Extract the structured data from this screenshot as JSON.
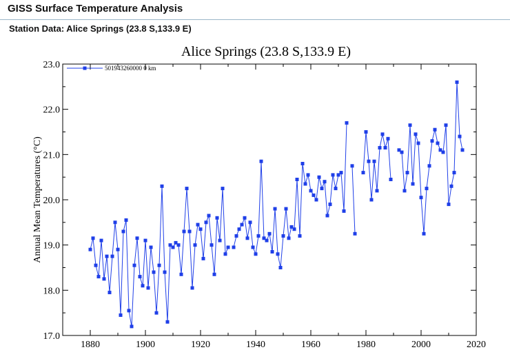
{
  "header": {
    "app_title": "GISS Surface Temperature Analysis",
    "station_heading": "Station Data: Alice Springs (23.8 S,133.9 E)"
  },
  "colors": {
    "series": "#1f3fe8",
    "header_rule": "#9bb6c9"
  },
  "chart_data": {
    "type": "line",
    "title": "Alice Springs (23.8 S,133.9 E)",
    "xlabel": "",
    "ylabel": "Annual Mean Temperatures (°C)",
    "xlim": [
      1870,
      2020
    ],
    "ylim": [
      17.0,
      23.0
    ],
    "x_ticks": [
      1880,
      1900,
      1920,
      1940,
      1960,
      1980,
      2000,
      2020
    ],
    "y_ticks": [
      17.0,
      18.0,
      19.0,
      20.0,
      21.0,
      22.0,
      23.0
    ],
    "grid": false,
    "legend_position": "top-left",
    "series": [
      {
        "name": "501943260000  0 km",
        "points": [
          [
            1880,
            18.9
          ],
          [
            1881,
            19.15
          ],
          [
            1882,
            18.55
          ],
          [
            1883,
            18.3
          ],
          [
            1884,
            19.1
          ],
          [
            1885,
            18.25
          ],
          [
            1886,
            18.75
          ],
          [
            1887,
            17.95
          ],
          [
            1888,
            18.75
          ],
          [
            1889,
            19.5
          ],
          [
            1890,
            18.9
          ],
          [
            1891,
            17.45
          ],
          [
            1892,
            19.3
          ],
          [
            1893,
            19.55
          ],
          [
            1894,
            17.55
          ],
          [
            1895,
            17.2
          ],
          [
            1896,
            18.55
          ],
          [
            1897,
            19.15
          ],
          [
            1898,
            18.3
          ],
          [
            1899,
            18.1
          ],
          [
            1900,
            19.1
          ],
          [
            1901,
            18.05
          ],
          [
            1902,
            18.95
          ],
          [
            1903,
            18.4
          ],
          [
            1904,
            17.5
          ],
          [
            1905,
            18.55
          ],
          [
            1906,
            20.3
          ],
          [
            1907,
            18.4
          ],
          [
            1908,
            17.3
          ],
          [
            1909,
            19.0
          ],
          [
            1910,
            18.95
          ],
          [
            1911,
            19.05
          ],
          [
            1912,
            19.0
          ],
          [
            1913,
            18.35
          ],
          [
            1914,
            19.3
          ],
          [
            1915,
            20.25
          ],
          [
            1916,
            19.3
          ],
          [
            1917,
            18.05
          ],
          [
            1918,
            19.0
          ],
          [
            1919,
            19.45
          ],
          [
            1920,
            19.35
          ],
          [
            1921,
            18.7
          ],
          [
            1922,
            19.5
          ],
          [
            1923,
            19.65
          ],
          [
            1924,
            19.0
          ],
          [
            1925,
            18.35
          ],
          [
            1926,
            19.6
          ],
          [
            1927,
            19.1
          ],
          [
            1928,
            20.25
          ],
          [
            1929,
            18.8
          ],
          [
            1930,
            18.95
          ],
          [
            1932,
            18.95
          ],
          [
            1933,
            19.2
          ],
          [
            1934,
            19.35
          ],
          [
            1935,
            19.45
          ],
          [
            1936,
            19.6
          ],
          [
            1937,
            19.15
          ],
          [
            1938,
            19.5
          ],
          [
            1939,
            18.95
          ],
          [
            1940,
            18.8
          ],
          [
            1941,
            19.2
          ],
          [
            1942,
            20.85
          ],
          [
            1943,
            19.15
          ],
          [
            1944,
            19.1
          ],
          [
            1945,
            19.25
          ],
          [
            1946,
            18.85
          ],
          [
            1947,
            19.8
          ],
          [
            1948,
            18.8
          ],
          [
            1949,
            18.5
          ],
          [
            1950,
            19.2
          ],
          [
            1951,
            19.8
          ],
          [
            1952,
            19.15
          ],
          [
            1953,
            19.4
          ],
          [
            1954,
            19.35
          ],
          [
            1955,
            20.45
          ],
          [
            1956,
            19.2
          ],
          [
            1957,
            20.8
          ],
          [
            1958,
            20.35
          ],
          [
            1959,
            20.55
          ],
          [
            1960,
            20.2
          ],
          [
            1961,
            20.1
          ],
          [
            1962,
            20.0
          ],
          [
            1963,
            20.5
          ],
          [
            1964,
            20.25
          ],
          [
            1965,
            20.4
          ],
          [
            1966,
            19.65
          ],
          [
            1967,
            19.9
          ],
          [
            1968,
            20.55
          ],
          [
            1969,
            20.25
          ],
          [
            1970,
            20.55
          ],
          [
            1971,
            20.6
          ],
          [
            1972,
            19.75
          ],
          [
            1973,
            21.7
          ],
          [
            1975,
            20.75
          ],
          [
            1976,
            19.25
          ],
          [
            1979,
            20.6
          ],
          [
            1980,
            21.5
          ],
          [
            1981,
            20.85
          ],
          [
            1982,
            20.0
          ],
          [
            1983,
            20.85
          ],
          [
            1984,
            20.2
          ],
          [
            1985,
            21.15
          ],
          [
            1986,
            21.45
          ],
          [
            1987,
            21.15
          ],
          [
            1988,
            21.35
          ],
          [
            1989,
            20.45
          ],
          [
            1992,
            21.1
          ],
          [
            1993,
            21.05
          ],
          [
            1994,
            20.2
          ],
          [
            1995,
            20.6
          ],
          [
            1996,
            21.65
          ],
          [
            1997,
            20.35
          ],
          [
            1998,
            21.45
          ],
          [
            1999,
            21.25
          ],
          [
            2000,
            20.05
          ],
          [
            2001,
            19.25
          ],
          [
            2002,
            20.25
          ],
          [
            2003,
            20.75
          ],
          [
            2004,
            21.3
          ],
          [
            2005,
            21.55
          ],
          [
            2006,
            21.25
          ],
          [
            2007,
            21.1
          ],
          [
            2008,
            21.05
          ],
          [
            2009,
            21.65
          ],
          [
            2010,
            19.9
          ],
          [
            2011,
            20.3
          ],
          [
            2012,
            20.6
          ],
          [
            2013,
            22.6
          ],
          [
            2014,
            21.4
          ],
          [
            2015,
            21.1
          ]
        ]
      }
    ]
  }
}
